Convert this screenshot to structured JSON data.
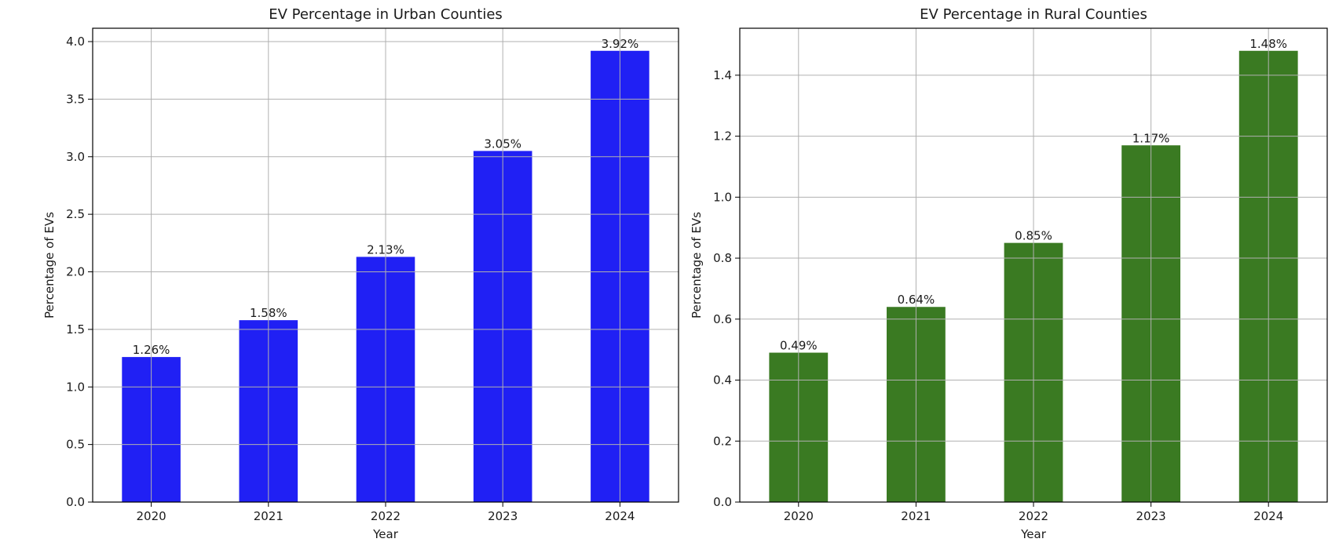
{
  "chart_data": [
    {
      "type": "bar",
      "title": "EV Percentage in Urban Counties",
      "xlabel": "Year",
      "ylabel": "Percentage of EVs",
      "categories": [
        "2020",
        "2021",
        "2022",
        "2023",
        "2024"
      ],
      "values": [
        1.26,
        1.58,
        2.13,
        3.05,
        3.92
      ],
      "data_labels": [
        "1.26%",
        "1.58%",
        "2.13%",
        "3.05%",
        "3.92%"
      ],
      "yticks": [
        0.0,
        0.5,
        1.0,
        1.5,
        2.0,
        2.5,
        3.0,
        3.5,
        4.0
      ],
      "ytick_labels": [
        "0.0",
        "0.5",
        "1.0",
        "1.5",
        "2.0",
        "2.5",
        "3.0",
        "3.5",
        "4.0"
      ],
      "ylim": [
        0,
        4.116
      ],
      "grid": true,
      "color": "#2020f4"
    },
    {
      "type": "bar",
      "title": "EV Percentage in Rural Counties",
      "xlabel": "Year",
      "ylabel": "Percentage of EVs",
      "categories": [
        "2020",
        "2021",
        "2022",
        "2023",
        "2024"
      ],
      "values": [
        0.49,
        0.64,
        0.85,
        1.17,
        1.48
      ],
      "data_labels": [
        "0.49%",
        "0.64%",
        "0.85%",
        "1.17%",
        "1.48%"
      ],
      "yticks": [
        0.0,
        0.2,
        0.4,
        0.6,
        0.8,
        1.0,
        1.2,
        1.4
      ],
      "ytick_labels": [
        "0.0",
        "0.2",
        "0.4",
        "0.6",
        "0.8",
        "1.0",
        "1.2",
        "1.4"
      ],
      "ylim": [
        0,
        1.554
      ],
      "grid": true,
      "color": "#3a7a22"
    }
  ]
}
